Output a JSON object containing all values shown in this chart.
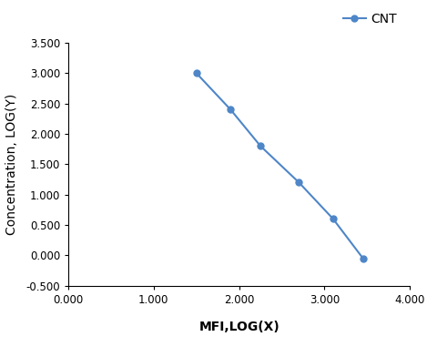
{
  "x": [
    1.5,
    1.9,
    2.25,
    2.7,
    3.1,
    3.45
  ],
  "y": [
    3.0,
    2.4,
    1.8,
    1.2,
    0.6,
    -0.05
  ],
  "line_color": "#4e86c8",
  "marker": "o",
  "marker_size": 5,
  "line_width": 1.5,
  "legend_label": "CNT",
  "xlabel": "MFI,LOG(X)",
  "ylabel": "Concentration, LOG(Y)",
  "xlim": [
    0.0,
    4.0
  ],
  "ylim": [
    -0.5,
    3.5
  ],
  "xticks": [
    0.0,
    1.0,
    2.0,
    3.0,
    4.0
  ],
  "yticks": [
    -0.5,
    0.0,
    0.5,
    1.0,
    1.5,
    2.0,
    2.5,
    3.0,
    3.5
  ],
  "xtick_labels": [
    "0.000",
    "1.000",
    "2.000",
    "3.000",
    "4.000"
  ],
  "ytick_labels": [
    "-0.500",
    "0.000",
    "0.500",
    "1.000",
    "1.500",
    "2.000",
    "2.500",
    "3.000",
    "3.500"
  ],
  "background_color": "#ffffff",
  "axis_label_fontsize": 10,
  "tick_fontsize": 8.5,
  "legend_fontsize": 10
}
